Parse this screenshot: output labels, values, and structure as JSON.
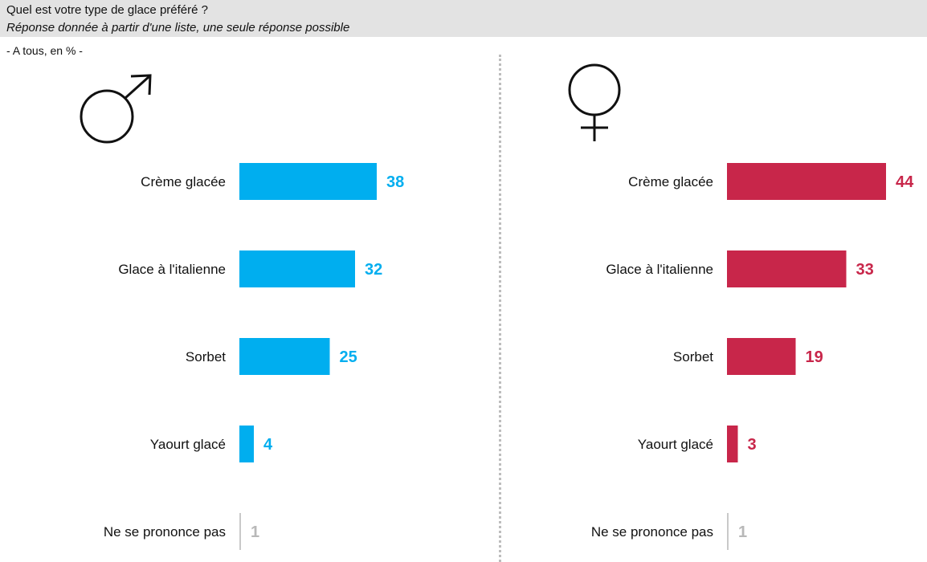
{
  "header": {
    "question": "Quel est votre type de glace préféré ?",
    "subtitle": "Réponse donnée à partir d'une liste, une seule réponse possible"
  },
  "base_note": "- A tous, en % -",
  "colors": {
    "men": "#00aeef",
    "women": "#c8264a",
    "no_answer": "#b8b8b8"
  },
  "icons": {
    "men": "male-symbol-icon",
    "women": "female-symbol-icon"
  },
  "chart_data": [
    {
      "type": "bar",
      "orientation": "horizontal",
      "group": "men",
      "categories": [
        "Crème glacée",
        "Glace à l'italienne",
        "Sorbet",
        "Yaourt glacé",
        "Ne se prononce pas"
      ],
      "values": [
        38,
        32,
        25,
        4,
        1
      ],
      "value_labels": [
        "38",
        "32",
        "25",
        "4",
        "1"
      ],
      "unit": "%",
      "xlim": [
        0,
        44
      ]
    },
    {
      "type": "bar",
      "orientation": "horizontal",
      "group": "women",
      "categories": [
        "Crème glacée",
        "Glace à l'italienne",
        "Sorbet",
        "Yaourt glacé",
        "Ne se prononce pas"
      ],
      "values": [
        44,
        33,
        19,
        3,
        1
      ],
      "value_labels": [
        "44",
        "33",
        "19",
        "3",
        "1"
      ],
      "unit": "%",
      "xlim": [
        0,
        44
      ]
    }
  ]
}
